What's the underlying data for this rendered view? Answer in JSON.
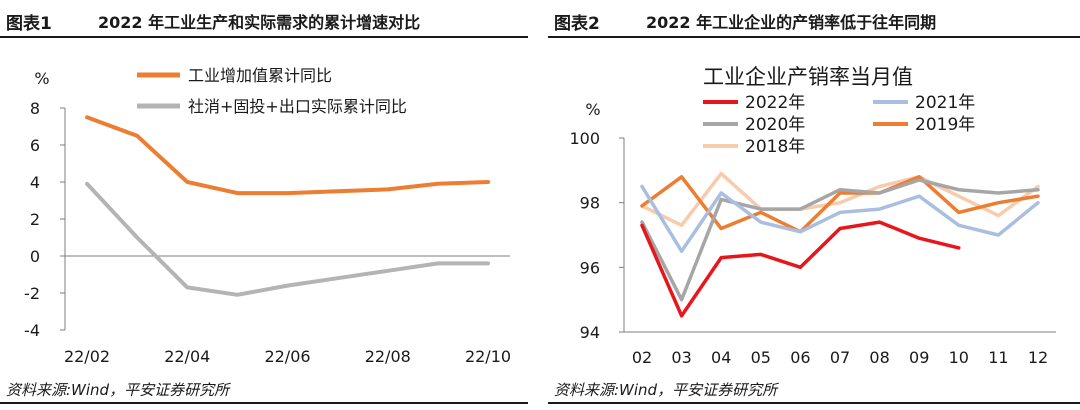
{
  "charts": [
    {
      "figure_no": "图表1",
      "title": "2022 年工业生产和实际需求的累计增速对比",
      "source": "资料来源:Wind，平安证券研究所"
    },
    {
      "figure_no": "图表2",
      "title": "2022 年工业企业的产销率低于往年同期",
      "source": "资料来源:Wind，平安证券研究所"
    }
  ],
  "chart_data": [
    {
      "type": "line",
      "title": "2022 年工业生产和实际需求的累计增速对比",
      "ylabel": "%",
      "ylim": [
        -4,
        8
      ],
      "yticks": [
        -4,
        -2,
        0,
        2,
        4,
        6,
        8
      ],
      "x": [
        "22/02",
        "22/03",
        "22/04",
        "22/05",
        "22/06",
        "22/07",
        "22/08",
        "22/09",
        "22/10"
      ],
      "xtick_labels": [
        "22/02",
        "22/04",
        "22/06",
        "22/08",
        "22/10"
      ],
      "xtick_index": [
        0,
        2,
        4,
        6,
        8
      ],
      "legend_position": "top",
      "series": [
        {
          "name": "工业增加值累计同比",
          "color": "#ED7D31",
          "values": [
            7.5,
            6.5,
            4.0,
            3.4,
            3.4,
            3.5,
            3.6,
            3.9,
            4.0
          ]
        },
        {
          "name": "社消+固投+出口实际累计同比",
          "color": "#B4B4B4",
          "values": [
            3.9,
            1.0,
            -1.7,
            -2.1,
            -1.6,
            -1.2,
            -0.8,
            -0.4,
            -0.4
          ]
        }
      ]
    },
    {
      "type": "line",
      "title": "工业企业产销率当月值",
      "ylabel": "%",
      "ylim": [
        94,
        100
      ],
      "yticks": [
        94,
        96,
        98,
        100
      ],
      "x": [
        "02",
        "03",
        "04",
        "05",
        "06",
        "07",
        "08",
        "09",
        "10",
        "11",
        "12"
      ],
      "legend_position": "top",
      "series": [
        {
          "name": "2022年",
          "color": "#E8161C",
          "values": [
            97.3,
            94.5,
            96.3,
            96.4,
            96.0,
            97.2,
            97.4,
            96.9,
            96.6,
            null,
            null
          ]
        },
        {
          "name": "2021年",
          "color": "#A9BEE0",
          "values": [
            98.5,
            96.5,
            98.3,
            97.4,
            97.1,
            97.7,
            97.8,
            98.2,
            97.3,
            97.0,
            98.0
          ]
        },
        {
          "name": "2020年",
          "color": "#A6A6A6",
          "values": [
            97.4,
            95.0,
            98.1,
            97.8,
            97.8,
            98.4,
            98.3,
            98.7,
            98.4,
            98.3,
            98.4
          ]
        },
        {
          "name": "2019年",
          "color": "#ED7D31",
          "values": [
            97.9,
            98.8,
            97.2,
            97.7,
            97.1,
            98.3,
            98.3,
            98.8,
            97.7,
            98.0,
            98.2
          ]
        },
        {
          "name": "2018年",
          "color": "#F8CBAD",
          "values": [
            97.9,
            97.3,
            98.9,
            97.8,
            97.8,
            98.0,
            98.5,
            98.8,
            98.2,
            97.6,
            98.5
          ]
        }
      ]
    }
  ]
}
